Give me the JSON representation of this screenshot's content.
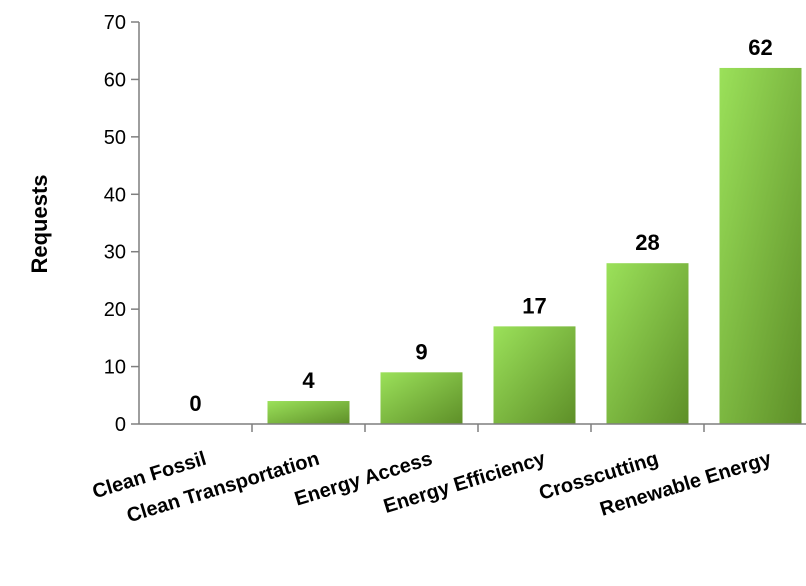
{
  "chart_data": {
    "type": "bar",
    "ylabel": "Requests",
    "xlabel": "",
    "ylim": [
      0,
      70
    ],
    "yticks": [
      0,
      10,
      20,
      30,
      40,
      50,
      60,
      70
    ],
    "categories": [
      "Clean Fossil",
      "Clean Transportation",
      "Energy Access",
      "Energy Efficiency",
      "Crosscutting",
      "Renewable Energy"
    ],
    "values": [
      0,
      4,
      9,
      17,
      28,
      62
    ],
    "data_labels": [
      "0",
      "4",
      "9",
      "17",
      "28",
      "62"
    ],
    "grid": false,
    "legend": "none",
    "colors": {
      "bar_light": "#9be15a",
      "bar_dark": "#5e8f28",
      "axis": "#7f7f7f"
    }
  }
}
